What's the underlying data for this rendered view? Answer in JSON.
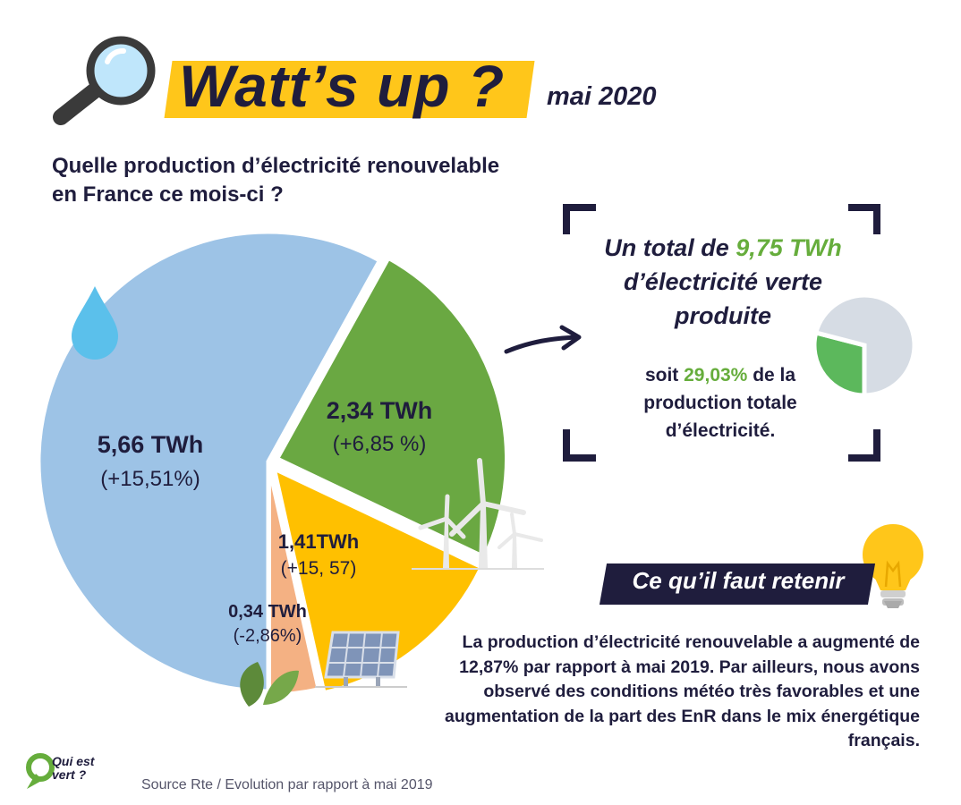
{
  "header": {
    "title": "Watt’s up ?",
    "date": "mai 2020"
  },
  "question": "Quelle production d’électricité renouvelable en France ce mois-ci ?",
  "colors": {
    "navy": "#1f1d3d",
    "yellow": "#ffc61a",
    "green": "#66ad3c",
    "hydro": "#9dc3e6",
    "wind": "#6aa842",
    "solar": "#ffc000",
    "bio": "#f4b183",
    "gray": "#d6dce4"
  },
  "chart_data": [
    {
      "type": "pie",
      "title": "",
      "slices": [
        {
          "value": 5.66,
          "label": "5,66 TWh",
          "change": "(+15,51%)",
          "icon": "water-drop-icon",
          "color": "#9dc3e6"
        },
        {
          "value": 2.34,
          "label": "2,34 TWh",
          "change": "(+6,85 %)",
          "icon": "wind-turbine-icon",
          "color": "#6aa842"
        },
        {
          "value": 1.41,
          "label": "1,41TWh",
          "change": "(+15, 57)",
          "icon": "solar-panel-icon",
          "color": "#ffc000"
        },
        {
          "value": 0.34,
          "label": "0,34 TWh",
          "change": "(-2,86%)",
          "icon": "leaf-icon",
          "color": "#f4b183"
        }
      ]
    },
    {
      "type": "pie",
      "title": "",
      "slices": [
        {
          "value": 29.03,
          "color": "#5cb85c"
        },
        {
          "value": 70.97,
          "color": "#d6dce4"
        }
      ]
    }
  ],
  "total": {
    "prefix": "Un total de",
    "value": "9,75 TWh",
    "rest": "d’électricité verte produite"
  },
  "share": {
    "prefix": "soit",
    "value": "29,03%",
    "rest": "de la production totale d’électricité."
  },
  "retain": {
    "title": "Ce qu’il faut retenir",
    "text": "La production d’électricité renouvelable a augmenté de 12,87% par rapport à mai 2019. Par ailleurs, nous avons observé des conditions météo très favorables et une augmentation de la part des EnR dans le mix énergétique français."
  },
  "footer": {
    "source": "Source Rte / Evolution par rapport à mai 2019",
    "logo": "Qui est vert ?"
  }
}
